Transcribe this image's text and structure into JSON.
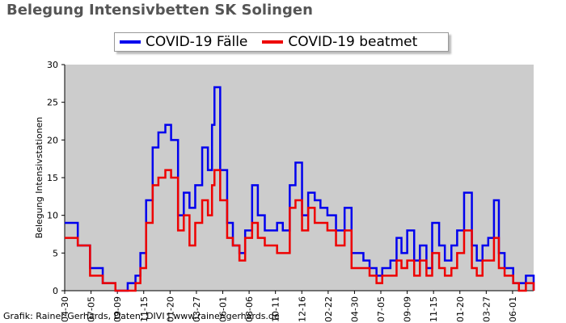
{
  "title": "Belegung Intensivbetten SK Solingen",
  "credit": "Grafik: Rainer Gerhards, Daten: DIVI | www.rainer-gerhards.de",
  "chart_data": {
    "type": "line",
    "title": "Belegung Intensivbetten SK Solingen",
    "xlabel": "",
    "ylabel": "Belegung Intensivstationen",
    "ylim": [
      0,
      30
    ],
    "yticks": [
      0,
      5,
      10,
      15,
      20,
      25,
      30
    ],
    "grid": false,
    "legend_position": "top",
    "background": "#cccccc",
    "x_tick_labels": [
      "04-30",
      "07-05",
      "09-09",
      "11-15",
      "01-20",
      "03-27",
      "06-01",
      "08-06",
      "10-11",
      "12-16",
      "02-22",
      "04-30",
      "07-05",
      "09-09",
      "11-15",
      "01-20",
      "03-27",
      "06-01"
    ],
    "x": [
      "2020-04-30",
      "2020-06-01",
      "2020-07-01",
      "2020-08-01",
      "2020-09-01",
      "2020-10-01",
      "2020-10-20",
      "2020-11-01",
      "2020-11-15",
      "2020-12-01",
      "2020-12-15",
      "2021-01-01",
      "2021-01-15",
      "2021-02-01",
      "2021-02-15",
      "2021-03-01",
      "2021-03-15",
      "2021-04-01",
      "2021-04-15",
      "2021-04-25",
      "2021-05-01",
      "2021-05-15",
      "2021-06-01",
      "2021-06-15",
      "2021-07-01",
      "2021-07-15",
      "2021-08-01",
      "2021-08-15",
      "2021-09-01",
      "2021-09-15",
      "2021-10-01",
      "2021-10-15",
      "2021-11-01",
      "2021-11-15",
      "2021-12-01",
      "2021-12-16",
      "2022-01-01",
      "2022-01-15",
      "2022-02-01",
      "2022-02-22",
      "2022-03-15",
      "2022-04-01",
      "2022-04-30",
      "2022-05-15",
      "2022-06-01",
      "2022-06-15",
      "2022-07-05",
      "2022-07-20",
      "2022-08-01",
      "2022-08-15",
      "2022-09-01",
      "2022-09-15",
      "2022-10-01",
      "2022-10-15",
      "2022-11-01",
      "2022-11-15",
      "2022-12-01",
      "2022-12-15",
      "2023-01-01",
      "2023-01-20",
      "2023-02-01",
      "2023-02-15",
      "2023-03-01",
      "2023-03-15",
      "2023-03-27",
      "2023-04-10",
      "2023-05-01",
      "2023-05-15",
      "2023-06-01",
      "2023-06-20"
    ],
    "series": [
      {
        "name": "COVID-19 Fälle",
        "color": "#0000ee",
        "values": [
          9,
          6,
          3,
          1,
          0,
          1,
          2,
          5,
          12,
          19,
          21,
          22,
          20,
          10,
          13,
          11,
          14,
          19,
          16,
          22,
          27,
          16,
          9,
          6,
          5,
          8,
          14,
          10,
          8,
          8,
          9,
          8,
          14,
          17,
          10,
          13,
          12,
          11,
          10,
          8,
          11,
          5,
          4,
          3,
          2,
          3,
          4,
          7,
          5,
          8,
          4,
          6,
          3,
          9,
          6,
          4,
          6,
          8,
          13,
          6,
          4,
          6,
          7,
          12,
          5,
          3,
          1,
          1,
          2,
          0
        ]
      },
      {
        "name": "COVID-19 beatmet",
        "color": "#ee0000",
        "values": [
          7,
          6,
          2,
          1,
          0,
          0,
          1,
          3,
          9,
          14,
          15,
          16,
          15,
          8,
          10,
          6,
          9,
          12,
          10,
          14,
          16,
          12,
          7,
          6,
          4,
          7,
          9,
          7,
          6,
          6,
          5,
          5,
          11,
          12,
          8,
          11,
          9,
          9,
          8,
          6,
          8,
          3,
          3,
          2,
          1,
          2,
          2,
          4,
          3,
          4,
          2,
          4,
          2,
          5,
          3,
          2,
          3,
          5,
          8,
          3,
          2,
          4,
          4,
          7,
          3,
          2,
          1,
          0,
          1,
          0
        ]
      }
    ]
  }
}
